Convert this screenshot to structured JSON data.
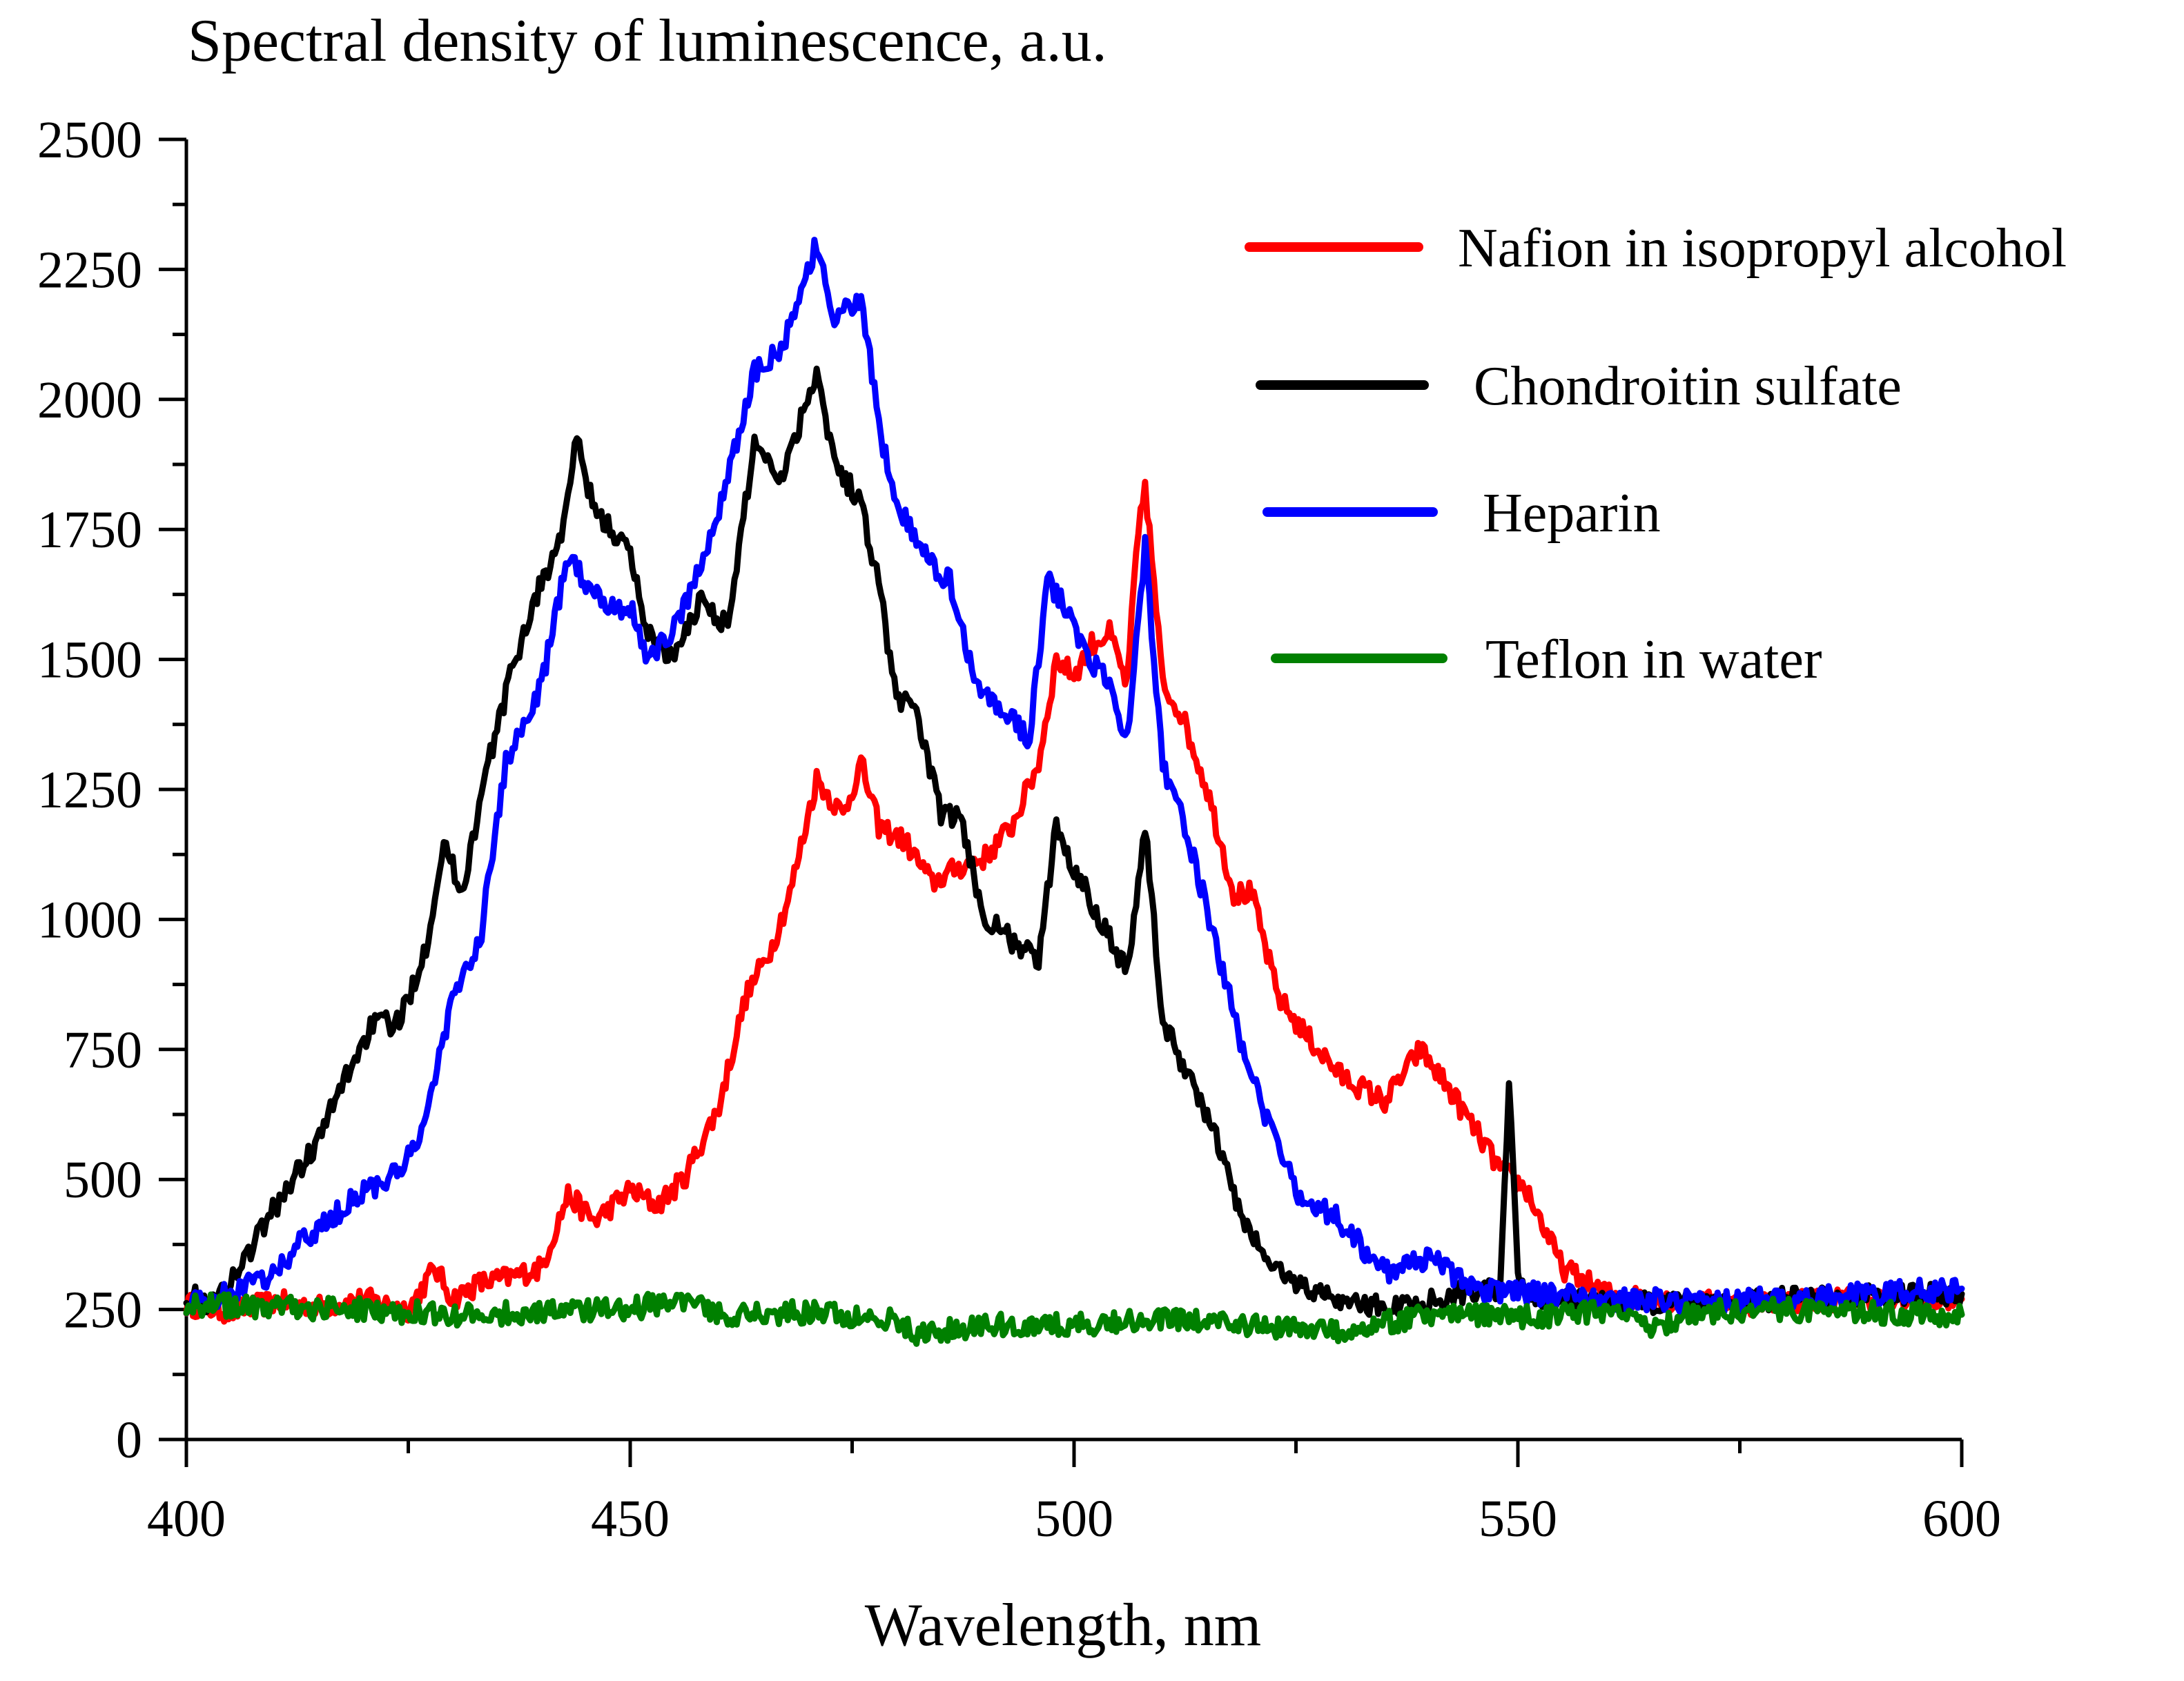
{
  "chart_data": {
    "type": "line",
    "title": "",
    "ylabel": "Spectral density of luminescence, a.u.",
    "xlabel": "Wavelength, nm",
    "xlim": [
      400,
      600
    ],
    "ylim": [
      0,
      2500
    ],
    "xticks": [
      400,
      450,
      500,
      550,
      600
    ],
    "xtick_labels": [
      "400",
      "450",
      "500",
      "550",
      "600"
    ],
    "yticks": [
      0,
      250,
      500,
      750,
      1000,
      1250,
      1500,
      1750,
      2000,
      2250,
      2500
    ],
    "ytick_labels": [
      "0",
      "250",
      "500",
      "750",
      "1000",
      "1250",
      "1500",
      "1750",
      "2000",
      "2250",
      "2500"
    ],
    "grid": false,
    "legend_position": "top-right",
    "series": [
      {
        "name": "Nafion in isopropyl alcohol",
        "color": "#ff0000",
        "x": [
          400,
          405,
          410,
          415,
          420,
          425,
          428,
          430,
          433,
          436,
          440,
          443,
          446,
          450,
          453,
          456,
          460,
          463,
          466,
          468,
          471,
          474,
          476,
          478,
          481,
          484,
          487,
          490,
          493,
          496,
          498,
          500,
          502,
          504,
          506,
          507,
          508,
          510,
          512,
          515,
          518,
          520,
          523,
          526,
          530,
          535,
          539,
          542,
          545,
          548,
          551,
          555,
          560,
          565,
          570,
          575,
          580,
          585,
          590,
          595,
          600
        ],
        "values": [
          260,
          245,
          265,
          255,
          270,
          250,
          330,
          270,
          300,
          310,
          330,
          470,
          420,
          480,
          450,
          500,
          640,
          850,
          950,
          1050,
          1270,
          1200,
          1300,
          1180,
          1150,
          1070,
          1100,
          1120,
          1180,
          1300,
          1500,
          1470,
          1530,
          1550,
          1450,
          1700,
          1840,
          1450,
          1400,
          1250,
          1050,
          1050,
          850,
          780,
          700,
          650,
          750,
          680,
          600,
          520,
          480,
          330,
          280,
          270,
          265,
          260,
          265,
          270,
          270,
          265,
          270
        ]
      },
      {
        "name": "Chondroitin sulfate",
        "color": "#000000",
        "x": [
          400,
          403,
          406,
          409,
          412,
          415,
          418,
          421,
          424,
          427,
          429,
          431,
          434,
          437,
          440,
          442,
          444,
          446,
          448,
          450,
          452,
          455,
          458,
          461,
          464,
          467,
          469,
          471,
          473,
          476,
          478,
          480,
          482,
          485,
          487,
          490,
          493,
          496,
          498,
          500,
          503,
          506,
          508,
          510,
          513,
          516,
          519,
          522,
          525,
          528,
          532,
          536,
          540,
          545,
          548,
          549,
          550,
          552,
          555,
          560,
          565,
          570,
          575,
          580,
          590,
          600
        ],
        "values": [
          280,
          260,
          330,
          420,
          500,
          580,
          700,
          800,
          800,
          950,
          1150,
          1050,
          1300,
          1500,
          1650,
          1720,
          1920,
          1780,
          1750,
          1700,
          1550,
          1500,
          1620,
          1560,
          1920,
          1850,
          1950,
          2060,
          1880,
          1800,
          1650,
          1420,
          1420,
          1200,
          1200,
          1000,
          960,
          920,
          1180,
          1100,
          1000,
          900,
          1180,
          800,
          700,
          580,
          420,
          340,
          300,
          280,
          260,
          255,
          265,
          290,
          280,
          690,
          300,
          270,
          265,
          265,
          260,
          265,
          265,
          270,
          275,
          280
        ]
      },
      {
        "name": "Heparin",
        "color": "#0000ff",
        "x": [
          400,
          405,
          410,
          413,
          416,
          420,
          423,
          426,
          428,
          430,
          433,
          436,
          440,
          443,
          445,
          448,
          450,
          452,
          455,
          458,
          461,
          464,
          467,
          469,
          471,
          473,
          476,
          478,
          480,
          483,
          486,
          489,
          492,
          495,
          497,
          499,
          501,
          504,
          506,
          508,
          510,
          513,
          516,
          519,
          522,
          525,
          530,
          535,
          540,
          545,
          550,
          560,
          570,
          580,
          590,
          600
        ],
        "values": [
          260,
          280,
          320,
          380,
          420,
          480,
          500,
          560,
          700,
          850,
          950,
          1300,
          1450,
          1700,
          1650,
          1600,
          1600,
          1500,
          1560,
          1680,
          1850,
          2050,
          2100,
          2180,
          2300,
          2150,
          2200,
          1950,
          1800,
          1700,
          1650,
          1450,
          1400,
          1350,
          1650,
          1600,
          1520,
          1450,
          1350,
          1720,
          1300,
          1150,
          950,
          750,
          600,
          480,
          420,
          320,
          350,
          290,
          285,
          270,
          265,
          270,
          280,
          290
        ]
      },
      {
        "name": "Teflon in water",
        "color": "#008000",
        "x": [
          400,
          410,
          420,
          430,
          440,
          450,
          455,
          460,
          470,
          480,
          482,
          490,
          500,
          510,
          520,
          530,
          540,
          550,
          560,
          565,
          570,
          580,
          590,
          600
        ],
        "values": [
          260,
          255,
          250,
          240,
          245,
          250,
          270,
          240,
          245,
          230,
          200,
          220,
          220,
          230,
          220,
          210,
          240,
          235,
          245,
          215,
          245,
          250,
          245,
          240
        ]
      }
    ]
  }
}
